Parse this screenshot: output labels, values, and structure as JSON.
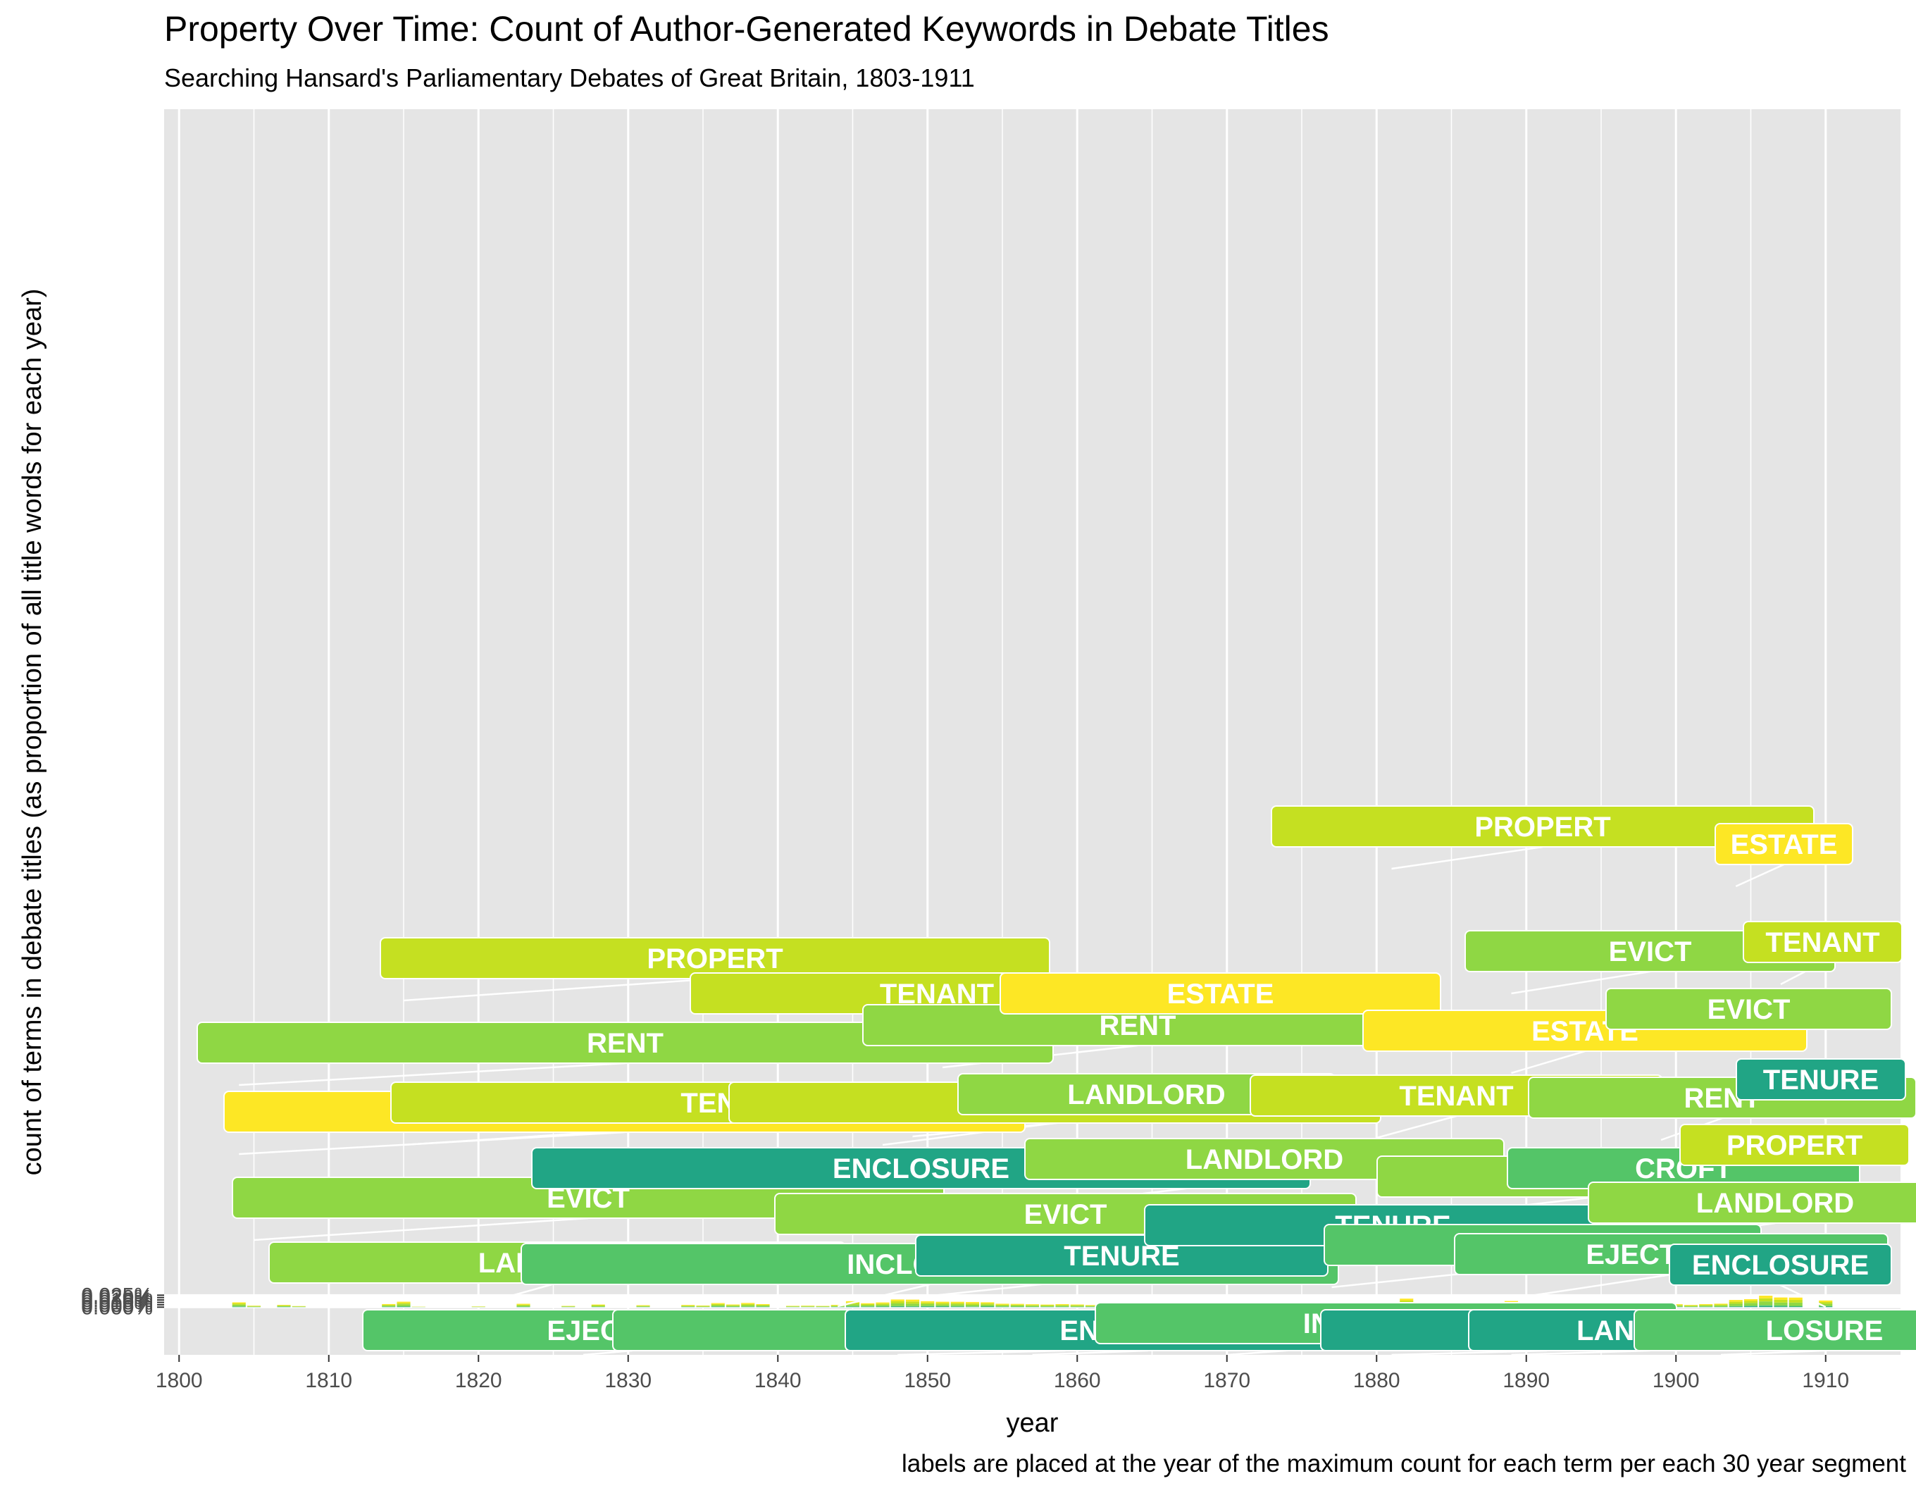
{
  "title": "Property Over Time: Count of Author-Generated Keywords in Debate Titles",
  "subtitle": "Searching Hansard's Parliamentary Debates of Great Britain, 1803-1911",
  "caption": "labels are placed at the year of the maximum count for each term per each 30 year segment",
  "colors": {
    "panel": "#e5e5e5",
    "grid": "#ffffff",
    "yellow": "#fde725",
    "yellowgreen": "#c5e021",
    "lightgreen": "#8fd744",
    "green": "#54c568",
    "teal": "#21a585"
  },
  "chart_data": {
    "type": "bar",
    "stacked": true,
    "xlabel": "year",
    "ylabel": "count of terms in debate titles (as proportion of all title words for each year)",
    "xlim": [
      1799,
      1915
    ],
    "ylim": [
      -0.001,
      0.0251
    ],
    "x_ticks": [
      {
        "value": 1800,
        "label": "1800"
      },
      {
        "value": 1810,
        "label": "1810"
      },
      {
        "value": 1820,
        "label": "1820"
      },
      {
        "value": 1830,
        "label": "1830"
      },
      {
        "value": 1840,
        "label": "1840"
      },
      {
        "value": 1850,
        "label": "1850"
      },
      {
        "value": 1860,
        "label": "1860"
      },
      {
        "value": 1870,
        "label": "1870"
      },
      {
        "value": 1880,
        "label": "1880"
      },
      {
        "value": 1890,
        "label": "1890"
      },
      {
        "value": 1900,
        "label": "1900"
      },
      {
        "value": 1910,
        "label": "1910"
      }
    ],
    "y_ticks": [
      {
        "value": 0.0,
        "label": "0.000%"
      },
      {
        "value": 5e-05,
        "label": "0.005%"
      },
      {
        "value": 0.0001,
        "label": "0.010%"
      },
      {
        "value": 0.00015,
        "label": "0.015%"
      },
      {
        "value": 0.0002,
        "label": "0.020%"
      },
      {
        "value": 0.00025,
        "label": "0.025%"
      }
    ],
    "y_scale_note": "values are proportions expressed in percent on axis",
    "years_totals_percent": [
      [
        1803,
        0.0
      ],
      [
        1804,
        0.01
      ],
      [
        1805,
        0.0031
      ],
      [
        1806,
        0.0
      ],
      [
        1807,
        0.0048
      ],
      [
        1808,
        0.0022
      ],
      [
        1809,
        0.0
      ],
      [
        1810,
        0.0
      ],
      [
        1811,
        0.0
      ],
      [
        1812,
        0.0
      ],
      [
        1813,
        0.0
      ],
      [
        1814,
        0.0064
      ],
      [
        1815,
        0.0114
      ],
      [
        1816,
        0.001
      ],
      [
        1817,
        0.0
      ],
      [
        1818,
        0.0
      ],
      [
        1819,
        0.0
      ],
      [
        1820,
        0.0015
      ],
      [
        1821,
        0.0
      ],
      [
        1822,
        0.0
      ],
      [
        1823,
        0.007
      ],
      [
        1824,
        0.0
      ],
      [
        1825,
        0.0
      ],
      [
        1826,
        0.0026
      ],
      [
        1827,
        0.0
      ],
      [
        1828,
        0.0054
      ],
      [
        1829,
        0.0
      ],
      [
        1830,
        0.0
      ],
      [
        1831,
        0.004
      ],
      [
        1832,
        0.0
      ],
      [
        1833,
        0.0
      ],
      [
        1834,
        0.0045
      ],
      [
        1835,
        0.0033
      ],
      [
        1836,
        0.0085
      ],
      [
        1837,
        0.0055
      ],
      [
        1838,
        0.0088
      ],
      [
        1839,
        0.0063
      ],
      [
        1840,
        0.0
      ],
      [
        1841,
        0.0028
      ],
      [
        1842,
        0.0031
      ],
      [
        1843,
        0.0026
      ],
      [
        1844,
        0.0048
      ],
      [
        1845,
        0.0125
      ],
      [
        1846,
        0.0081
      ],
      [
        1847,
        0.0098
      ],
      [
        1848,
        0.016
      ],
      [
        1849,
        0.0157
      ],
      [
        1850,
        0.0124
      ],
      [
        1851,
        0.0113
      ],
      [
        1852,
        0.0112
      ],
      [
        1853,
        0.0108
      ],
      [
        1854,
        0.0102
      ],
      [
        1855,
        0.0071
      ],
      [
        1856,
        0.0068
      ],
      [
        1857,
        0.006
      ],
      [
        1858,
        0.0053
      ],
      [
        1859,
        0.0062
      ],
      [
        1860,
        0.0055
      ],
      [
        1861,
        0.0043
      ],
      [
        1862,
        0.0031
      ],
      [
        1863,
        0.0025
      ],
      [
        1864,
        0.0033
      ],
      [
        1865,
        0.0023
      ],
      [
        1866,
        0.0026
      ],
      [
        1867,
        0.0024
      ],
      [
        1868,
        0.003
      ],
      [
        1869,
        0.0043
      ],
      [
        1870,
        0.0034
      ],
      [
        1871,
        0.0031
      ],
      [
        1872,
        0.0025
      ],
      [
        1873,
        0.0023
      ],
      [
        1874,
        0.0021
      ],
      [
        1875,
        0.0024
      ],
      [
        1876,
        0.0027
      ],
      [
        1877,
        0.0026
      ],
      [
        1878,
        0.0018
      ],
      [
        1879,
        0.0006
      ],
      [
        1880,
        0.0009
      ],
      [
        1881,
        0.0098
      ],
      [
        1882,
        0.0178
      ],
      [
        1883,
        0.0056
      ],
      [
        1884,
        0.0052
      ],
      [
        1885,
        0.0044
      ],
      [
        1886,
        0.0045
      ],
      [
        1887,
        0.0051
      ],
      [
        1888,
        0.0072
      ],
      [
        1889,
        0.0128
      ],
      [
        1890,
        0.0068
      ],
      [
        1891,
        0.0059
      ],
      [
        1892,
        0.0063
      ],
      [
        1893,
        0.007
      ],
      [
        1894,
        0.0093
      ],
      [
        1895,
        0.0076
      ],
      [
        1896,
        0.0094
      ],
      [
        1897,
        0.0083
      ],
      [
        1898,
        0.0069
      ],
      [
        1899,
        0.0058
      ],
      [
        1900,
        0.0061
      ],
      [
        1901,
        0.0047
      ],
      [
        1902,
        0.0062
      ],
      [
        1903,
        0.0072
      ],
      [
        1904,
        0.015
      ],
      [
        1905,
        0.0166
      ],
      [
        1906,
        0.0239
      ],
      [
        1907,
        0.0202
      ],
      [
        1908,
        0.02
      ],
      [
        1909,
        0.0
      ],
      [
        1910,
        0.0139
      ]
    ],
    "labels": [
      {
        "text": "RENT",
        "color": "lightgreen",
        "text_color": "#ffffff",
        "year": 1804
      },
      {
        "text": "ESTATE",
        "color": "yellow",
        "text_color": "#ffffff",
        "year": 1804
      },
      {
        "text": "EVICT",
        "color": "lightgreen",
        "text_color": "#ffffff",
        "year": 1805
      },
      {
        "text": "LANDLORD",
        "color": "lightgreen",
        "text_color": "#ffffff",
        "year": 1820
      },
      {
        "text": "EJECTMENT",
        "color": "green",
        "text_color": "#ffffff",
        "year": 1827
      },
      {
        "text": "PROPERT",
        "color": "yellowgreen",
        "text_color": "#ffffff",
        "year": 1815
      },
      {
        "text": "TENANT",
        "color": "yellowgreen",
        "text_color": "#ffffff",
        "year": 1815
      },
      {
        "text": "ENCLOSURE",
        "color": "teal",
        "text_color": "#ffffff",
        "year": 1836
      },
      {
        "text": "INCLOSURE",
        "color": "green",
        "text_color": "#ffffff",
        "year": 1844
      },
      {
        "text": "EJECTMENT",
        "color": "green",
        "text_color": "#ffffff",
        "year": 1848
      },
      {
        "text": "TENANT",
        "color": "yellowgreen",
        "text_color": "#ffffff",
        "year": 1845
      },
      {
        "text": "RENT",
        "color": "lightgreen",
        "text_color": "#ffffff",
        "year": 1851
      },
      {
        "text": "ESTATE",
        "color": "yellow",
        "text_color": "#ffffff",
        "year": 1853
      },
      {
        "text": "PROPERT",
        "color": "yellowgreen",
        "text_color": "#ffffff",
        "year": 1847
      },
      {
        "text": "LANDLORD",
        "color": "lightgreen",
        "text_color": "#ffffff",
        "year": 1849
      },
      {
        "text": "EVICT",
        "color": "lightgreen",
        "text_color": "#ffffff",
        "year": 1847
      },
      {
        "text": "TENURE",
        "color": "teal",
        "text_color": "#ffffff",
        "year": 1849
      },
      {
        "text": "ENCLOSURE",
        "color": "teal",
        "text_color": "#ffffff",
        "year": 1857
      },
      {
        "text": "LANDLORD",
        "color": "lightgreen",
        "text_color": "#ffffff",
        "year": 1860
      },
      {
        "text": "TENURE",
        "color": "teal",
        "text_color": "#ffffff",
        "year": 1865
      },
      {
        "text": "INCLOSURE",
        "color": "green",
        "text_color": "#ffffff",
        "year": 1870
      },
      {
        "text": "CROFT",
        "color": "green",
        "text_color": "#ffffff",
        "year": 1877
      },
      {
        "text": "TENANT",
        "color": "yellowgreen",
        "text_color": "#ffffff",
        "year": 1880
      },
      {
        "text": "PROPERT",
        "color": "yellowgreen",
        "text_color": "#ffffff",
        "year": 1881
      },
      {
        "text": "RENT",
        "color": "lightgreen",
        "text_color": "#ffffff",
        "year": 1882
      },
      {
        "text": "LANDOW",
        "color": "teal",
        "text_color": "#ffffff",
        "year": 1881
      },
      {
        "text": "ESTATE",
        "color": "yellow",
        "text_color": "#ffffff",
        "year": 1889
      },
      {
        "text": "EVICT",
        "color": "lightgreen",
        "text_color": "#ffffff",
        "year": 1889
      },
      {
        "text": "EJECTMENT",
        "color": "green",
        "text_color": "#ffffff",
        "year": 1890
      },
      {
        "text": "CROFT",
        "color": "green",
        "text_color": "#ffffff",
        "year": 1893
      },
      {
        "text": "RENT",
        "color": "lightgreen",
        "text_color": "#ffffff",
        "year": 1899
      },
      {
        "text": "LANDOWN",
        "color": "teal",
        "text_color": "#ffffff",
        "year": 1889
      },
      {
        "text": "LANDLORD",
        "color": "lightgreen",
        "text_color": "#ffffff",
        "year": 1896
      },
      {
        "text": "LOSURE",
        "color": "green",
        "text_color": "#ffffff",
        "year": 1903
      },
      {
        "text": "EVICT",
        "color": "lightgreen",
        "text_color": "#ffffff",
        "year": 1906
      },
      {
        "text": "ESTATE",
        "color": "yellow",
        "text_color": "#ffffff",
        "year": 1904
      },
      {
        "text": "TENANT",
        "color": "yellowgreen",
        "text_color": "#ffffff",
        "year": 1907
      },
      {
        "text": "TENURE",
        "color": "teal",
        "text_color": "#ffffff",
        "year": 1910
      },
      {
        "text": "PROPERT",
        "color": "yellowgreen",
        "text_color": "#ffffff",
        "year": 1910
      },
      {
        "text": "ENCLOSURE",
        "color": "teal",
        "text_color": "#ffffff",
        "year": 1910
      }
    ]
  }
}
